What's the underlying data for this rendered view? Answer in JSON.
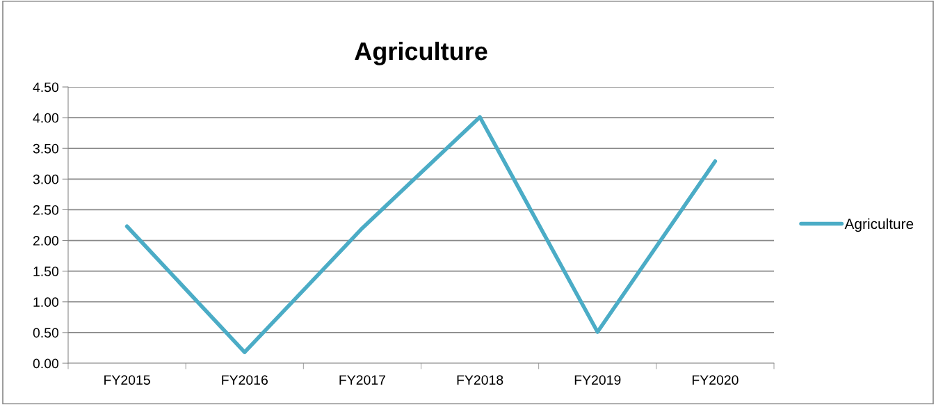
{
  "chart_data": {
    "type": "line",
    "title": "Agriculture",
    "categories": [
      "FY2015",
      "FY2016",
      "FY2017",
      "FY2018",
      "FY2019",
      "FY2020"
    ],
    "series": [
      {
        "name": "Agriculture",
        "color": "#4bacc6",
        "values": [
          2.23,
          0.18,
          2.2,
          4.01,
          0.51,
          3.29
        ]
      }
    ],
    "ylim": [
      0,
      4.5
    ],
    "yticks": [
      {
        "value": 0,
        "label": "0.00"
      },
      {
        "value": 0.5,
        "label": "0.50"
      },
      {
        "value": 1,
        "label": "1.00"
      },
      {
        "value": 1.5,
        "label": "1.50"
      },
      {
        "value": 2,
        "label": "2.00"
      },
      {
        "value": 2.5,
        "label": "2.50"
      },
      {
        "value": 3,
        "label": "3.00"
      },
      {
        "value": 3.5,
        "label": "3.50"
      },
      {
        "value": 4,
        "label": "4.00"
      },
      {
        "value": 4.5,
        "label": "4.50"
      }
    ],
    "grid": "y",
    "legend": "right",
    "marker": "none",
    "line_style": "solid"
  }
}
